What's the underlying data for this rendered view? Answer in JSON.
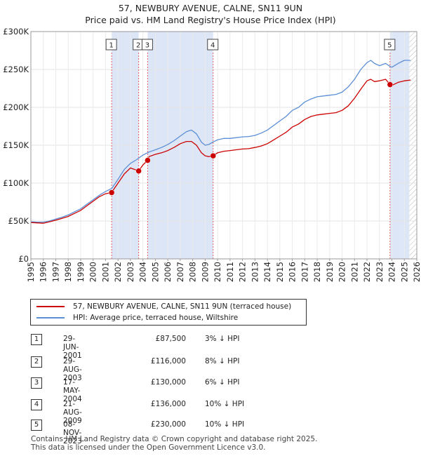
{
  "title_line1": "57, NEWBURY AVENUE, CALNE, SN11 9UN",
  "title_line2": "Price paid vs. HM Land Registry's House Price Index (HPI)",
  "chart_data": {
    "type": "line",
    "xlim": [
      1995,
      2026
    ],
    "ylim": [
      0,
      300000
    ],
    "y_ticks": [
      0,
      50000,
      100000,
      150000,
      200000,
      250000,
      300000
    ],
    "y_tick_labels": [
      "£0",
      "£50K",
      "£100K",
      "£150K",
      "£200K",
      "£250K",
      "£300K"
    ],
    "x_ticks": [
      1995,
      1996,
      1997,
      1998,
      1999,
      2000,
      2001,
      2002,
      2003,
      2004,
      2005,
      2006,
      2007,
      2008,
      2009,
      2010,
      2011,
      2012,
      2013,
      2014,
      2015,
      2016,
      2017,
      2018,
      2019,
      2020,
      2021,
      2022,
      2023,
      2024,
      2025,
      2026
    ],
    "grid": true,
    "colors": {
      "property": "#cc0000",
      "hpi": "#5b8fd6",
      "band": "#dde6f7",
      "marker_line": "#e06060"
    },
    "series": [
      {
        "name": "57, NEWBURY AVENUE, CALNE, SN11 9UN (terraced house)",
        "x": [
          1995,
          1995.5,
          1996,
          1996.5,
          1997,
          1997.5,
          1998,
          1998.5,
          1999,
          1999.5,
          2000,
          2000.5,
          2001,
          2001.49,
          2001.5,
          2002,
          2002.5,
          2003,
          2003.66,
          2004,
          2004.38,
          2004.5,
          2005,
          2005.5,
          2006,
          2006.5,
          2007,
          2007.5,
          2007.9,
          2008.3,
          2008.7,
          2009,
          2009.3,
          2009.64,
          2010,
          2010.5,
          2011,
          2011.5,
          2012,
          2012.5,
          2013,
          2013.5,
          2014,
          2014.5,
          2015,
          2015.5,
          2016,
          2016.5,
          2017,
          2017.5,
          2018,
          2018.5,
          2019,
          2019.5,
          2020,
          2020.5,
          2021,
          2021.5,
          2022,
          2022.3,
          2022.6,
          2023,
          2023.5,
          2023.85,
          2024,
          2024.5,
          2025,
          2025.5
        ],
        "values": [
          48000,
          47500,
          47000,
          49000,
          51000,
          53500,
          56000,
          60000,
          64000,
          70000,
          76000,
          82000,
          86000,
          87500,
          88000,
          100000,
          112000,
          120000,
          116000,
          124000,
          130000,
          135000,
          138000,
          140000,
          143000,
          147000,
          152000,
          155000,
          155000,
          150000,
          140000,
          136000,
          135000,
          136000,
          140000,
          142000,
          143000,
          144000,
          145000,
          145500,
          147000,
          149000,
          152000,
          157000,
          162000,
          167000,
          174000,
          178000,
          184000,
          188000,
          190000,
          191000,
          192000,
          193000,
          196000,
          202000,
          212000,
          224000,
          235000,
          237000,
          234000,
          235000,
          237000,
          230000,
          229000,
          233000,
          235000,
          236000
        ]
      },
      {
        "name": "HPI: Average price, terraced house, Wiltshire",
        "x": [
          1995,
          1995.5,
          1996,
          1996.5,
          1997,
          1997.5,
          1998,
          1998.5,
          1999,
          1999.5,
          2000,
          2000.5,
          2001,
          2001.5,
          2002,
          2002.5,
          2003,
          2003.5,
          2004,
          2004.5,
          2005,
          2005.5,
          2006,
          2006.5,
          2007,
          2007.5,
          2007.9,
          2008.3,
          2008.7,
          2009,
          2009.3,
          2009.6,
          2010,
          2010.5,
          2011,
          2011.5,
          2012,
          2012.5,
          2013,
          2013.5,
          2014,
          2014.5,
          2015,
          2015.5,
          2016,
          2016.5,
          2017,
          2017.5,
          2018,
          2018.5,
          2019,
          2019.5,
          2020,
          2020.5,
          2021,
          2021.5,
          2022,
          2022.3,
          2022.6,
          2023,
          2023.5,
          2023.85,
          2024,
          2024.5,
          2025,
          2025.5
        ],
        "values": [
          49000,
          48500,
          48500,
          50000,
          52500,
          55000,
          58000,
          62000,
          66000,
          72000,
          78000,
          84000,
          89000,
          93000,
          105000,
          118000,
          126000,
          131000,
          137000,
          141000,
          144000,
          147000,
          151000,
          156000,
          162000,
          168000,
          170000,
          165000,
          154000,
          150000,
          151000,
          154000,
          157000,
          159000,
          159000,
          160000,
          161000,
          161500,
          163000,
          166000,
          170000,
          176000,
          182000,
          188000,
          196000,
          200000,
          207000,
          211000,
          214000,
          215000,
          216000,
          217000,
          220000,
          227000,
          237000,
          250000,
          259000,
          262000,
          258000,
          255000,
          258000,
          254000,
          253000,
          258000,
          262000,
          262000
        ]
      }
    ],
    "sales": [
      {
        "id": "1",
        "x": 2001.49,
        "price": 87500
      },
      {
        "id": "2",
        "x": 2003.66,
        "price": 116000
      },
      {
        "id": "3",
        "x": 2004.38,
        "price": 130000
      },
      {
        "id": "4",
        "x": 2009.64,
        "price": 136000
      },
      {
        "id": "5",
        "x": 2023.85,
        "price": 230000
      }
    ],
    "shaded_bands": [
      [
        2001.49,
        2003.66
      ],
      [
        2004.38,
        2009.64
      ],
      [
        2023.85,
        2025.4
      ]
    ]
  },
  "legend": {
    "property_label": "57, NEWBURY AVENUE, CALNE, SN11 9UN (terraced house)",
    "hpi_label": "HPI: Average price, terraced house, Wiltshire"
  },
  "transactions": [
    {
      "num": "1",
      "date": "29-JUN-2001",
      "price": "£87,500",
      "hpi": "3% ↓ HPI"
    },
    {
      "num": "2",
      "date": "29-AUG-2003",
      "price": "£116,000",
      "hpi": "8% ↓ HPI"
    },
    {
      "num": "3",
      "date": "17-MAY-2004",
      "price": "£130,000",
      "hpi": "6% ↓ HPI"
    },
    {
      "num": "4",
      "date": "21-AUG-2009",
      "price": "£136,000",
      "hpi": "10% ↓ HPI"
    },
    {
      "num": "5",
      "date": "08-NOV-2023",
      "price": "£230,000",
      "hpi": "10% ↓ HPI"
    }
  ],
  "footer_line1": "Contains HM Land Registry data © Crown copyright and database right 2025.",
  "footer_line2": "This data is licensed under the Open Government Licence v3.0."
}
